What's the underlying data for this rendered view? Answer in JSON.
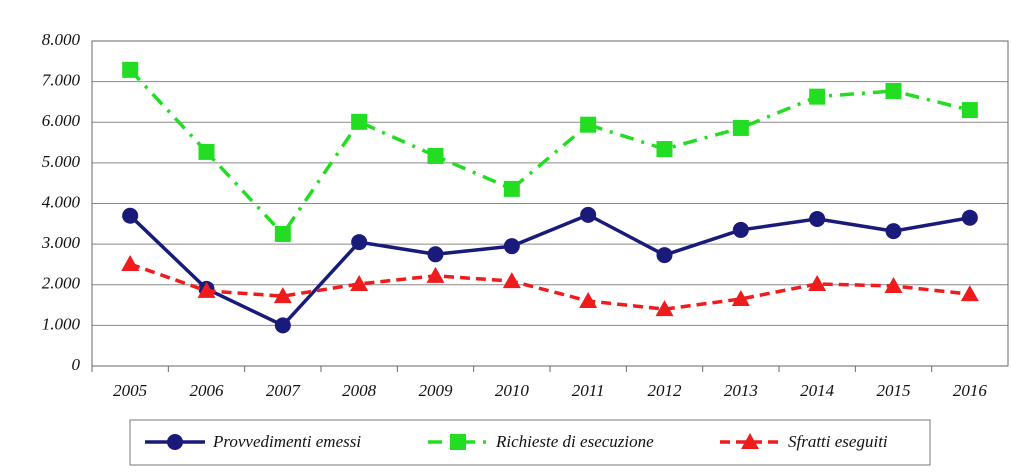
{
  "chart_data": {
    "type": "line",
    "categories": [
      "2005",
      "2006",
      "2007",
      "2008",
      "2009",
      "2010",
      "2011",
      "2012",
      "2013",
      "2014",
      "2015",
      "2016"
    ],
    "series": [
      {
        "name": "Provvedimenti emessi",
        "color": "#1a1a7a",
        "marker": "circle",
        "line_style": "solid",
        "values": [
          3700,
          1900,
          1000,
          3050,
          2750,
          2950,
          3720,
          2730,
          3350,
          3620,
          3320,
          3650
        ]
      },
      {
        "name": "Richieste di esecuzione",
        "color": "#22dd22",
        "marker": "square",
        "line_style": "dash-dot",
        "values": [
          7290,
          5270,
          3250,
          6010,
          5170,
          4360,
          5940,
          5340,
          5860,
          6630,
          6770,
          6300
        ]
      },
      {
        "name": "Sfratti eseguiti",
        "color": "#ee1c1c",
        "marker": "triangle",
        "line_style": "dashed",
        "values": [
          2510,
          1850,
          1720,
          2020,
          2220,
          2090,
          1600,
          1400,
          1650,
          2020,
          1970,
          1770
        ]
      }
    ],
    "ylim": [
      0,
      8000
    ],
    "yticks": [
      0,
      {
        "value": 1000,
        "label": "1.000"
      },
      {
        "value": 2000,
        "label": "2.000"
      },
      {
        "value": 3000,
        "label": "3.000"
      },
      {
        "value": 4000,
        "label": "4.000"
      },
      {
        "value": 5000,
        "label": "5.000"
      },
      {
        "value": 6000,
        "label": "6.000"
      },
      {
        "value": 7000,
        "label": "7.000"
      },
      {
        "value": 8000,
        "label": "8.000"
      }
    ],
    "grid": true,
    "legend": "bottom"
  }
}
